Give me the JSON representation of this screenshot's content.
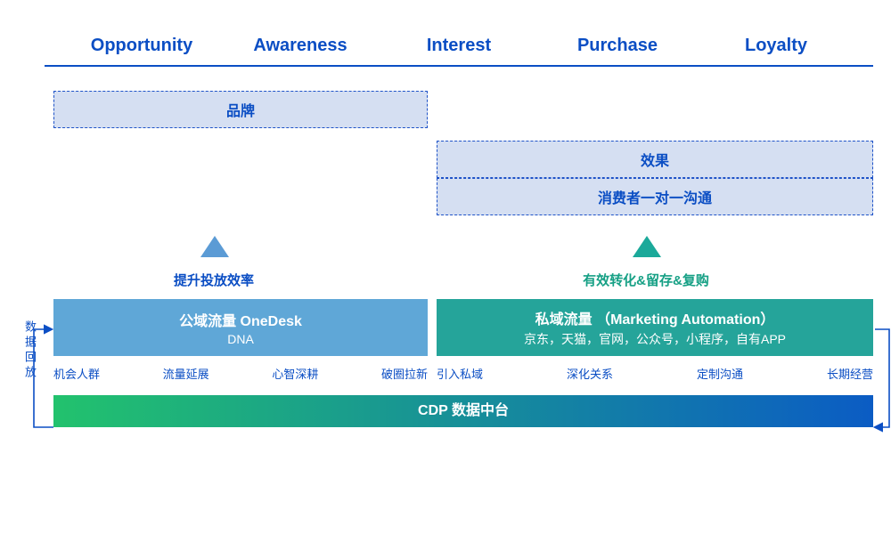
{
  "colors": {
    "stage_text": "#0b4ec4",
    "stage_rule": "#0b4ec4",
    "dash_bg": "#d5dff2",
    "dash_border": "#1f53c8",
    "dash_text": "#0b4ec4",
    "tri_left": "#5b9bd5",
    "tri_right": "#1ba99a",
    "caption_left": "#0b4ec4",
    "caption_right": "#16a085",
    "box_left": "#5fa7d7",
    "box_right": "#25a49a",
    "tag_text": "#0b4ec4",
    "cdp_from": "#22c26d",
    "cdp_to": "#0b5cc4",
    "vlabel": "#0b4ec4",
    "arrow": "#0b4ec4"
  },
  "stages": [
    "Opportunity",
    "Awareness",
    "Interest",
    "Purchase",
    "Loyalty"
  ],
  "dashboxes": {
    "brand": {
      "label": "品牌"
    },
    "effect": {
      "label": "效果"
    },
    "comm": {
      "label": "消费者一对一沟通"
    }
  },
  "captions": {
    "left": "提升投放效率",
    "right": "有效转化&留存&复购"
  },
  "mainboxes": {
    "left": {
      "title": "公域流量 OneDesk",
      "sub": "DNA"
    },
    "right": {
      "title": "私域流量 （Marketing Automation）",
      "sub": "京东，天猫，官网，公众号，小程序，自有APP"
    }
  },
  "tags": {
    "left": [
      "机会人群",
      "流量延展",
      "心智深耕",
      "破圈拉新"
    ],
    "right": [
      "引入私域",
      "深化关系",
      "定制沟通",
      "长期经营"
    ]
  },
  "cdp": "CDP 数据中台",
  "vlabel": "数据回放"
}
